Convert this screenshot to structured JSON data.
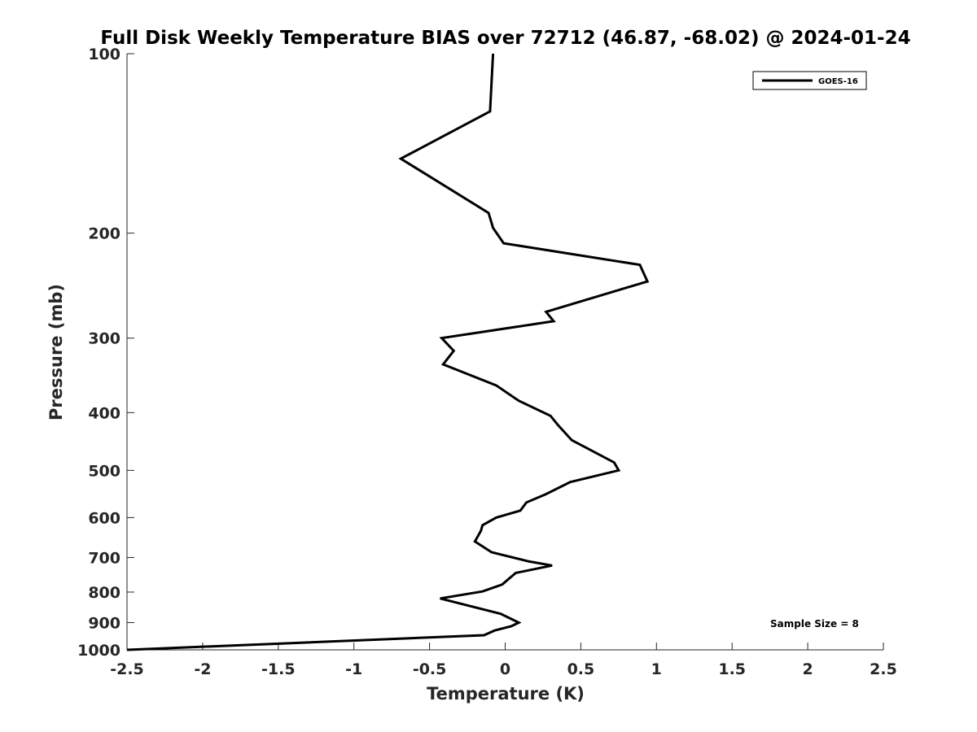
{
  "chart_data": {
    "type": "line",
    "title": "Full Disk Weekly Temperature BIAS over 72712 (46.87, -68.02) @ 2024-01-24",
    "xlabel": "Temperature (K)",
    "ylabel": "Pressure (mb)",
    "xlim": [
      -2.5,
      2.5
    ],
    "ylim": [
      100,
      1000
    ],
    "y_scale": "log",
    "y_reversed": true,
    "grid": false,
    "legend_placement": "top-right",
    "x_ticks": [
      -2.5,
      -2,
      -1.5,
      -1,
      -0.5,
      0,
      0.5,
      1,
      1.5,
      2,
      2.5
    ],
    "x_tick_labels": [
      "-2.5",
      "-2",
      "-1.5",
      "-1",
      "-0.5",
      "0",
      "0.5",
      "1",
      "1.5",
      "2",
      "2.5"
    ],
    "y_ticks": [
      100,
      200,
      300,
      400,
      500,
      600,
      700,
      800,
      900,
      1000
    ],
    "y_tick_labels": [
      "100",
      "200",
      "300",
      "400",
      "500",
      "600",
      "700",
      "800",
      "900",
      "1000"
    ],
    "series": [
      {
        "name": "GOES-16",
        "color": "#000000",
        "x": [
          -0.08,
          -0.1,
          -0.69,
          -0.11,
          -0.08,
          -0.01,
          0.89,
          0.94,
          0.27,
          0.32,
          -0.42,
          -0.34,
          -0.41,
          -0.06,
          0.09,
          0.3,
          0.35,
          0.44,
          0.72,
          0.75,
          0.43,
          0.27,
          0.14,
          0.1,
          -0.06,
          -0.15,
          -0.16,
          -0.2,
          -0.09,
          0.16,
          0.31,
          0.07,
          -0.02,
          -0.15,
          -0.43,
          -0.03,
          0.09,
          0.04,
          -0.07,
          -0.14,
          -2.5
        ],
        "y": [
          100,
          125,
          150,
          185,
          196,
          208,
          226,
          241,
          271,
          281,
          300,
          315,
          332,
          360,
          382,
          405,
          420,
          445,
          485,
          500,
          523,
          548,
          566,
          584,
          600,
          618,
          631,
          658,
          686,
          711,
          722,
          743,
          777,
          798,
          820,
          870,
          900,
          913,
          928,
          945,
          1000
        ]
      }
    ],
    "annotations": [
      "Sample Size = 8"
    ]
  }
}
